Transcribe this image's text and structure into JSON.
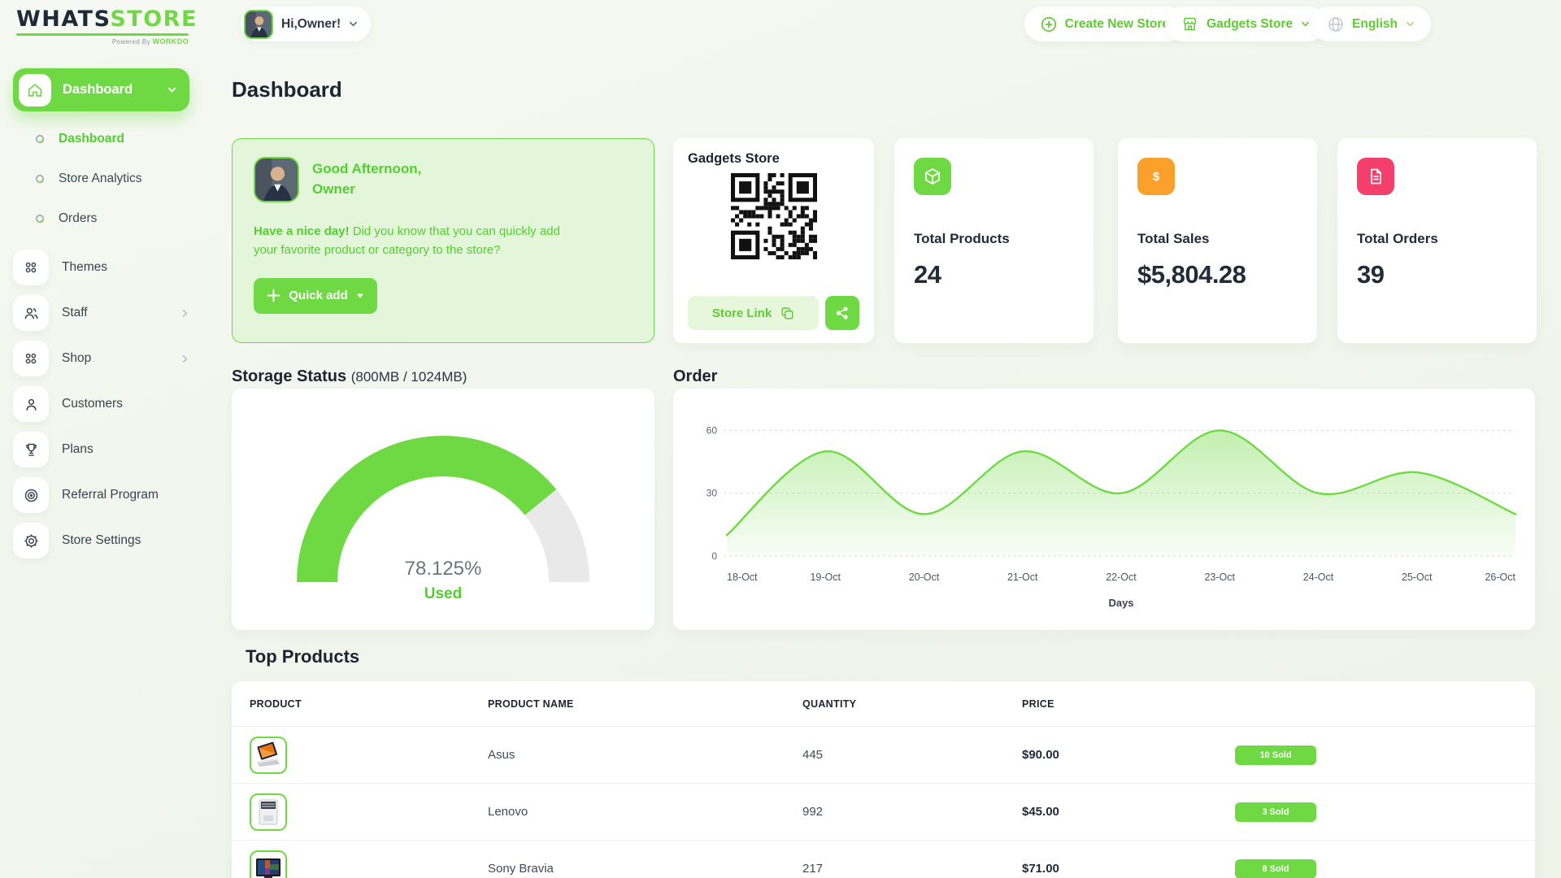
{
  "brand": {
    "name_primary": "WHATS",
    "name_secondary": "STORE",
    "powered_prefix": "Powered By ",
    "powered_primary": "WORK",
    "powered_secondary": "DO"
  },
  "topbar": {
    "greeting": "Hi,Owner!",
    "create_new_store": "Create New Store",
    "store_switcher": "Gadgets Store",
    "language": "English"
  },
  "sidebar": {
    "group_label": "Dashboard",
    "sub_items": [
      {
        "label": "Dashboard",
        "active": true
      },
      {
        "label": "Store Analytics",
        "active": false
      },
      {
        "label": "Orders",
        "active": false
      }
    ],
    "items": [
      {
        "label": "Themes",
        "icon": "grid-icon",
        "has_submenu": false
      },
      {
        "label": "Staff",
        "icon": "users-icon",
        "has_submenu": true
      },
      {
        "label": "Shop",
        "icon": "grid-icon",
        "has_submenu": true
      },
      {
        "label": "Customers",
        "icon": "user-icon",
        "has_submenu": false
      },
      {
        "label": "Plans",
        "icon": "trophy-icon",
        "has_submenu": false
      },
      {
        "label": "Referral Program",
        "icon": "target-icon",
        "has_submenu": false
      },
      {
        "label": "Store Settings",
        "icon": "gear-icon",
        "has_submenu": false
      }
    ]
  },
  "page": {
    "title": "Dashboard"
  },
  "greeting_card": {
    "line1": "Good Afternoon,",
    "line2": "Owner",
    "message_bold": "Have a nice day!",
    "message_rest": " Did you know that you can quickly add your favorite product or category to the store?",
    "quick_add_label": "Quick add"
  },
  "store_card": {
    "title": "Gadgets Store",
    "link_label": "Store Link"
  },
  "stats": [
    {
      "label": "Total Products",
      "value": "24",
      "icon": "package-icon",
      "color": "#6fd943"
    },
    {
      "label": "Total Sales",
      "value": "$5,804.28",
      "icon": "dollar-icon",
      "color": "#fba12b"
    },
    {
      "label": "Total Orders",
      "value": "39",
      "icon": "invoice-icon",
      "color": "#f43f6d"
    }
  ],
  "storage_section": {
    "heading": "Storage Status",
    "heading_detail": "(800MB / 1024MB)"
  },
  "top_products": {
    "heading": "Top Products",
    "columns": [
      "PRODUCT",
      "PRODUCT NAME",
      "QUANTITY",
      "PRICE"
    ],
    "rows": [
      {
        "name": "Asus",
        "quantity": "445",
        "price": "$90.00",
        "sold": "10 Sold",
        "image": "asus-laptop"
      },
      {
        "name": "Lenovo",
        "quantity": "992",
        "price": "$45.00",
        "sold": "3 Sold",
        "image": "lenovo-laptop"
      },
      {
        "name": "Sony Bravia",
        "quantity": "217",
        "price": "$71.00",
        "sold": "8 Sold",
        "image": "sony-tv"
      }
    ]
  },
  "chart_data": [
    {
      "type": "gauge",
      "title": "Storage Status (800MB / 1024MB)",
      "used_mb": 800,
      "total_mb": 1024,
      "value_percent": 78.125,
      "center_label": "78.125%",
      "sub_label": "Used",
      "fill_color": "#6fd943",
      "track_color": "#e9e9e9"
    },
    {
      "type": "area",
      "title": "Order",
      "x": [
        "18-Oct",
        "19-Oct",
        "20-Oct",
        "21-Oct",
        "22-Oct",
        "23-Oct",
        "24-Oct",
        "25-Oct",
        "26-Oct"
      ],
      "series": [
        {
          "name": "Order",
          "values": [
            10,
            50,
            20,
            50,
            30,
            60,
            30,
            40,
            20
          ]
        }
      ],
      "xlabel": "Days",
      "yticks": [
        0,
        30,
        60
      ],
      "ylim": [
        0,
        66
      ],
      "line_color": "#6fd943",
      "grid": "dashed-horizontal",
      "legend": "none"
    }
  ],
  "colors": {
    "brand_green": "#6fd943",
    "green_text": "#53cd30",
    "orange": "#fba12b",
    "pink": "#f43f6d",
    "dark_text": "#1d2430"
  }
}
